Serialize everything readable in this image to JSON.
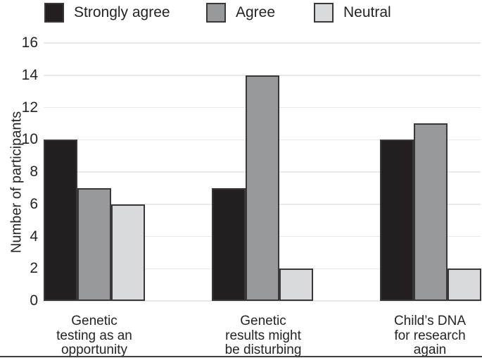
{
  "chart_data": {
    "type": "bar",
    "title": "",
    "ylabel": "Number of participants",
    "xlabel": "",
    "ylim": [
      0,
      16
    ],
    "yticks": [
      0,
      2,
      4,
      6,
      8,
      10,
      12,
      14,
      16
    ],
    "grid": "horizontal",
    "legend_position": "top",
    "categories": [
      {
        "label": "Genetic testing as an opportunity",
        "lines": [
          "Genetic",
          "testing as an",
          "opportunity"
        ]
      },
      {
        "label": "Genetic results might be disturbing",
        "lines": [
          "Genetic",
          "results might",
          "be disturbing"
        ]
      },
      {
        "label": "Child’s DNA for research again",
        "lines": [
          "Child’s DNA",
          "for research",
          "again"
        ]
      }
    ],
    "series": [
      {
        "name": "Strongly agree",
        "color": "#231f20",
        "values": [
          10,
          7,
          10
        ]
      },
      {
        "name": "Agree",
        "color": "#97999b",
        "values": [
          7,
          14,
          11
        ]
      },
      {
        "name": "Neutral",
        "color": "#d9dadb",
        "values": [
          6,
          2,
          2
        ]
      }
    ],
    "colors": {
      "bar_border": "#39373a",
      "gridline": "#e8e9e9",
      "text": "#262324",
      "bottom_rule": "#413f41"
    }
  }
}
